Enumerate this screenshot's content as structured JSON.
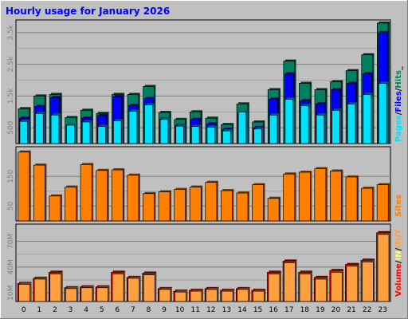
{
  "chart_data": [
    {
      "type": "bar",
      "title": "Hourly usage for January 2026",
      "categories": [
        "0",
        "1",
        "2",
        "3",
        "4",
        "5",
        "6",
        "7",
        "8",
        "9",
        "10",
        "11",
        "12",
        "13",
        "14",
        "15",
        "16",
        "17",
        "18",
        "19",
        "20",
        "21",
        "22",
        "23"
      ],
      "y_ticks": [
        "500",
        "1.5k",
        "2.5k",
        "3.5k"
      ],
      "y_tick_values": [
        500,
        1500,
        2500,
        3500
      ],
      "ylim": [
        0,
        3900
      ],
      "legend": [
        "Pages",
        "Files",
        "Hits"
      ],
      "legend_separators": [
        "/",
        "/",
        "_"
      ],
      "series": [
        {
          "name": "Hits",
          "color": "#008060",
          "values": [
            1100,
            1500,
            1550,
            820,
            1050,
            950,
            1550,
            1550,
            1800,
            980,
            760,
            1000,
            800,
            600,
            1250,
            680,
            1700,
            2600,
            1900,
            1700,
            1950,
            2300,
            2800,
            3800
          ]
        },
        {
          "name": "Files",
          "color": "#0000ff",
          "values": [
            800,
            1170,
            1450,
            580,
            800,
            880,
            1480,
            1200,
            1420,
            780,
            580,
            760,
            620,
            450,
            960,
            500,
            1400,
            2200,
            1350,
            1250,
            1700,
            1900,
            2200,
            3500
          ]
        },
        {
          "name": "Pages",
          "color": "#00e0ff",
          "values": [
            700,
            950,
            900,
            580,
            680,
            540,
            720,
            1020,
            1220,
            760,
            550,
            540,
            520,
            400,
            1000,
            460,
            900,
            1400,
            1200,
            900,
            1050,
            1250,
            1550,
            1900
          ]
        }
      ]
    },
    {
      "type": "bar",
      "categories": [
        "0",
        "1",
        "2",
        "3",
        "4",
        "5",
        "6",
        "7",
        "8",
        "9",
        "10",
        "11",
        "12",
        "13",
        "14",
        "15",
        "16",
        "17",
        "18",
        "19",
        "20",
        "21",
        "22",
        "23"
      ],
      "y_ticks": [
        "50",
        "150"
      ],
      "y_tick_values": [
        50,
        150
      ],
      "ylim": [
        0,
        250
      ],
      "legend": [
        "Sites"
      ],
      "series": [
        {
          "name": "Sites",
          "color": "#ff8000",
          "values": [
            232,
            188,
            84,
            114,
            190,
            170,
            172,
            154,
            92,
            98,
            106,
            114,
            130,
            102,
            94,
            122,
            76,
            158,
            164,
            176,
            168,
            148,
            110,
            122
          ]
        }
      ]
    },
    {
      "type": "bar",
      "categories": [
        "0",
        "1",
        "2",
        "3",
        "4",
        "5",
        "6",
        "7",
        "8",
        "9",
        "10",
        "11",
        "12",
        "13",
        "14",
        "15",
        "16",
        "17",
        "18",
        "19",
        "20",
        "21",
        "22",
        "23"
      ],
      "y_ticks": [
        "10M",
        "40M",
        "70M"
      ],
      "y_tick_values": [
        10,
        40,
        70
      ],
      "ylim": [
        0,
        90
      ],
      "legend": [
        "Volume",
        "IN",
        "OUT"
      ],
      "legend_separators": [
        "/",
        "/",
        ""
      ],
      "series": [
        {
          "name": "Volume",
          "color": "#ff0000",
          "values": [
            21,
            27,
            34,
            16,
            17,
            17,
            34,
            28,
            33,
            15,
            12,
            13,
            15,
            13,
            15,
            13,
            34,
            47,
            34,
            28,
            36,
            43,
            48,
            80
          ]
        },
        {
          "name": "OUT",
          "color": "#ffa040",
          "values": [
            20,
            26,
            32,
            15,
            16,
            16,
            32,
            27,
            31,
            14,
            11,
            12,
            14,
            12,
            14,
            12,
            32,
            45,
            32,
            26,
            34,
            41,
            46,
            78
          ]
        }
      ]
    }
  ]
}
